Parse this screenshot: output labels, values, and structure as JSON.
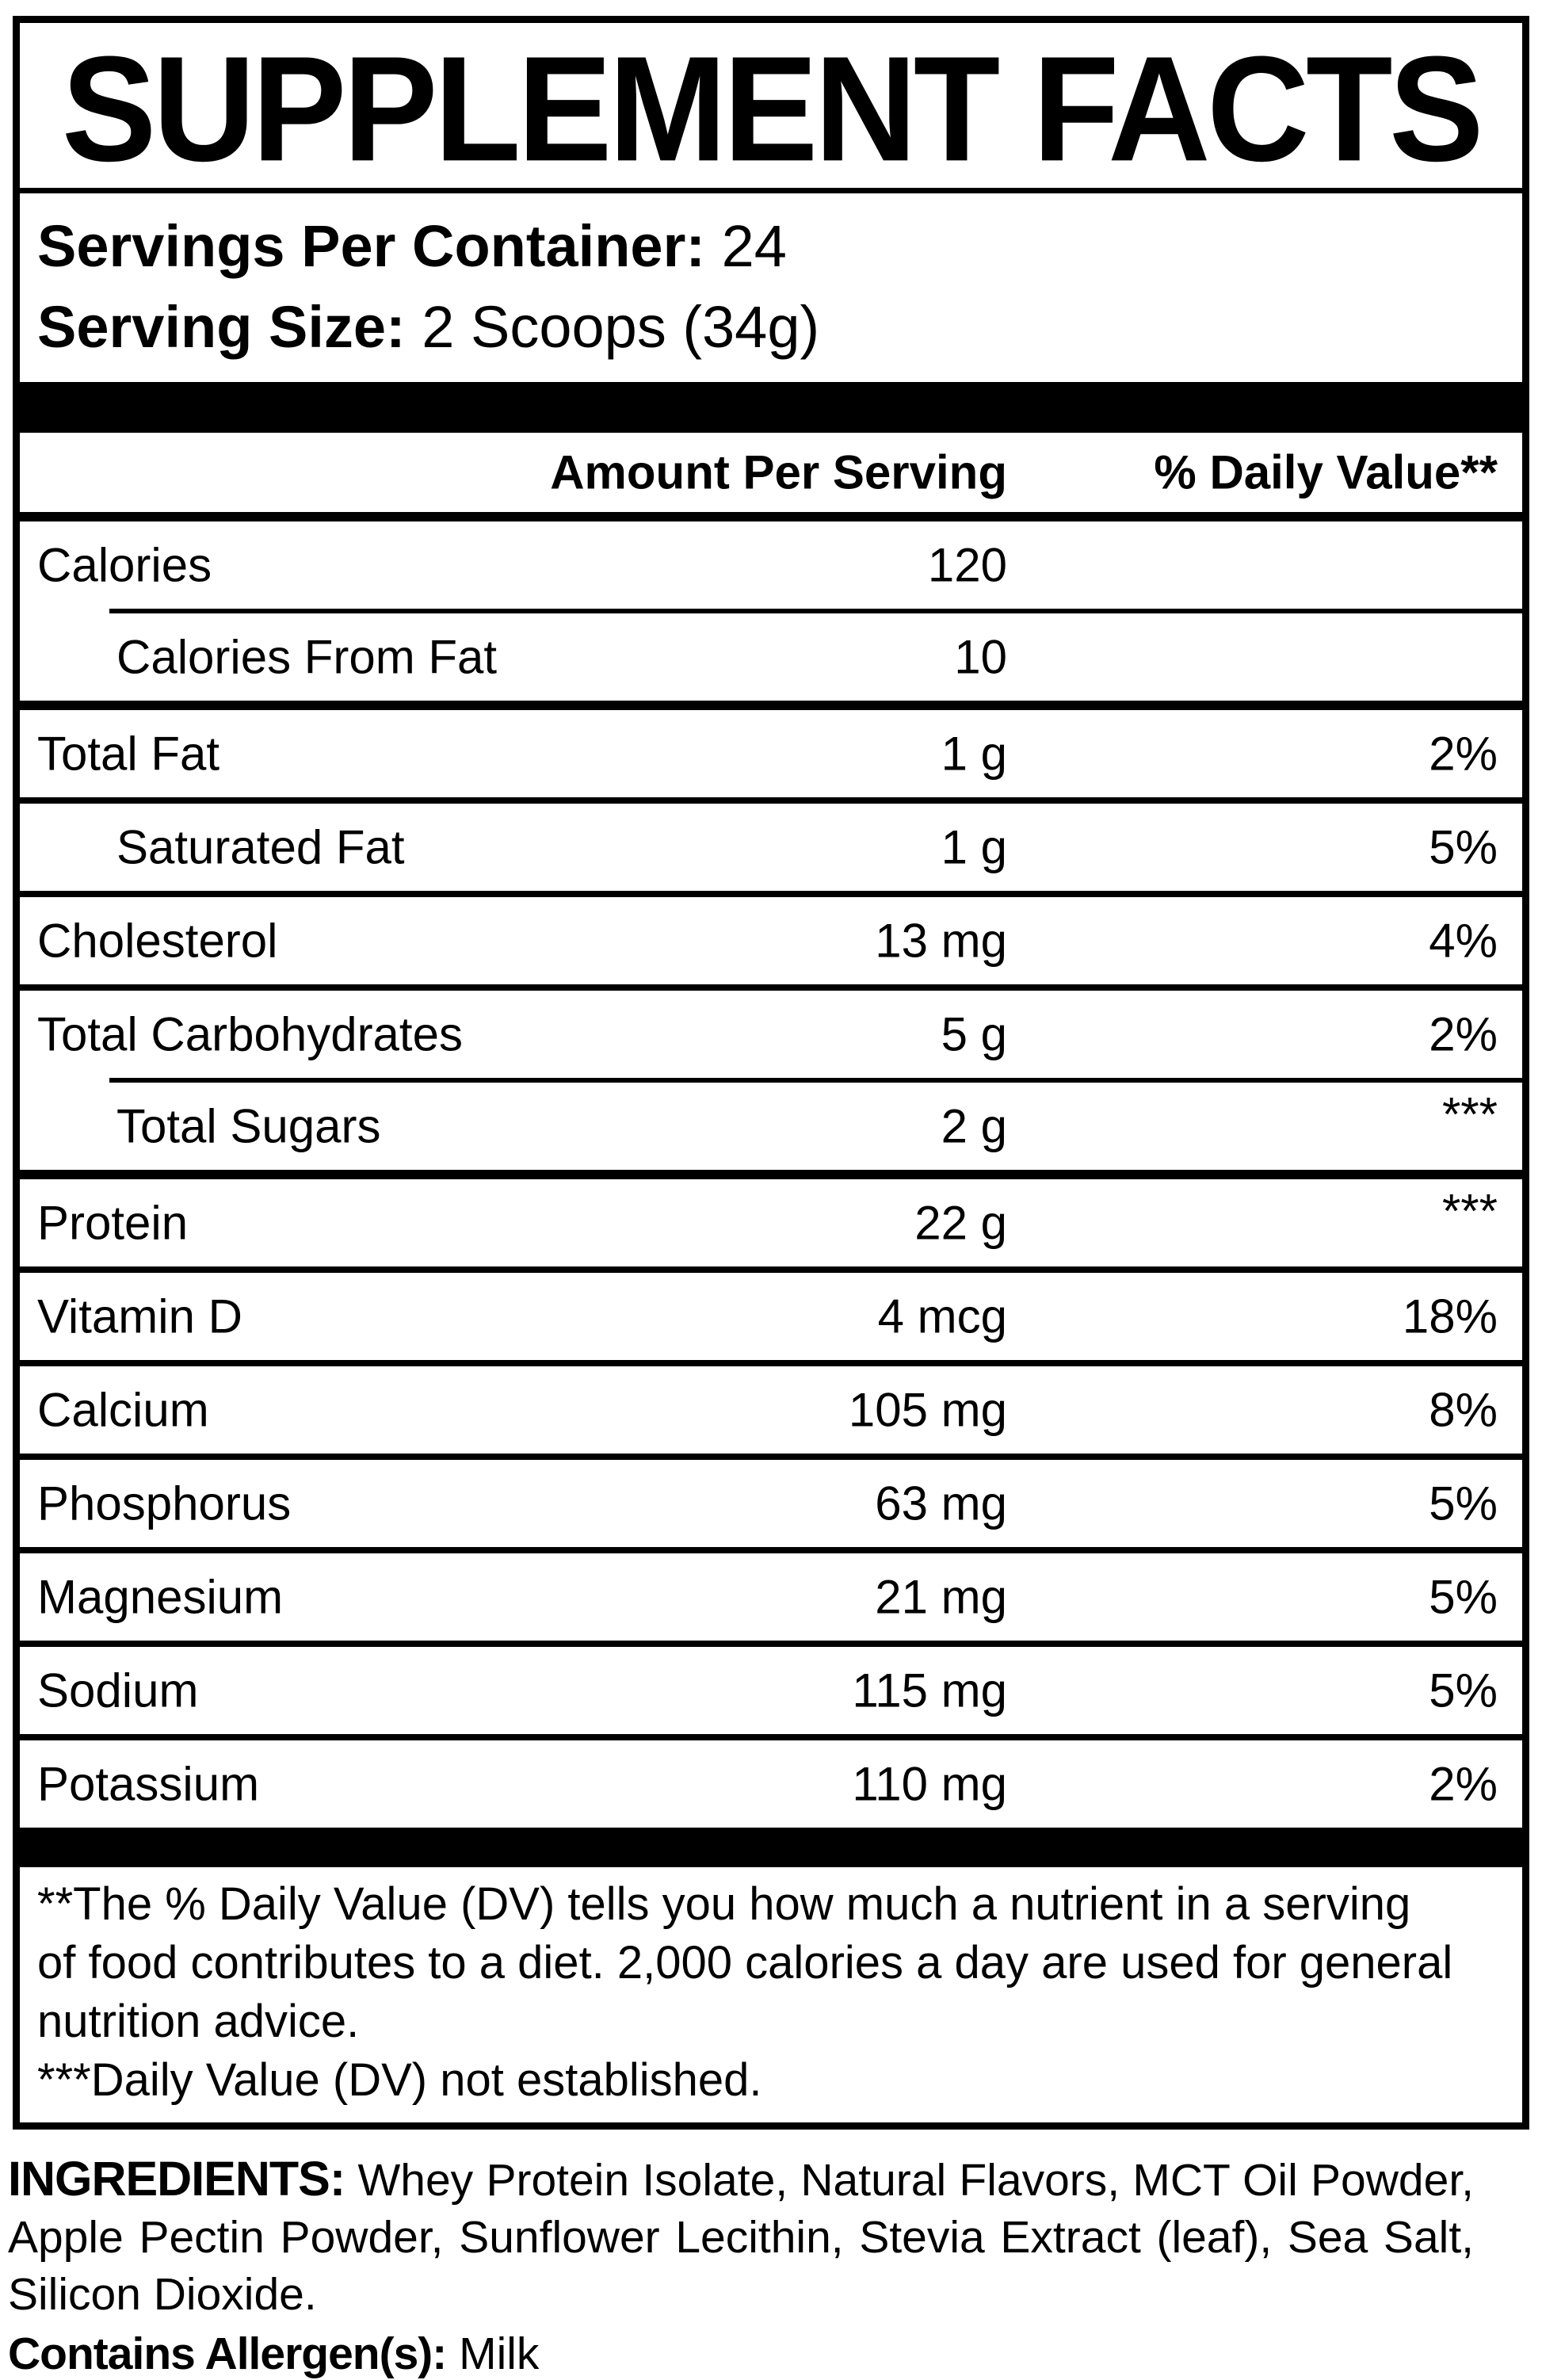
{
  "colors": {
    "text": "#000000",
    "background": "#ffffff"
  },
  "panel": {
    "title": "SUPPLEMENT FACTS",
    "servings_per_container": {
      "label": "Servings Per Container:",
      "value": "24"
    },
    "serving_size": {
      "label": "Serving Size:",
      "value": "2 Scoops (34g)"
    }
  },
  "table": {
    "amount_header": "Amount Per Serving",
    "dv_header": "% Daily Value**",
    "rows": [
      {
        "name": "Calories",
        "amount": "120",
        "dv": "",
        "indent": false,
        "rule_below": "indent"
      },
      {
        "name": "Calories From Fat",
        "amount": "10",
        "dv": "",
        "indent": true,
        "rule_below": "thick"
      },
      {
        "name": "Total Fat",
        "amount": "1 g",
        "dv": "2%",
        "indent": false,
        "rule_below": "normal"
      },
      {
        "name": "Saturated Fat",
        "amount": "1 g",
        "dv": "5%",
        "indent": true,
        "rule_below": "normal"
      },
      {
        "name": "Cholesterol",
        "amount": "13 mg",
        "dv": "4%",
        "indent": false,
        "rule_below": "normal"
      },
      {
        "name": "Total Carbohydrates",
        "amount": "5 g",
        "dv": "2%",
        "indent": false,
        "rule_below": "indent"
      },
      {
        "name": "Total Sugars",
        "amount": "2 g",
        "dv": "***",
        "indent": true,
        "rule_below": "thick"
      },
      {
        "name": "Protein",
        "amount": "22 g",
        "dv": "***",
        "indent": false,
        "rule_below": "normal"
      },
      {
        "name": "Vitamin D",
        "amount": "4 mcg",
        "dv": "18%",
        "indent": false,
        "rule_below": "normal"
      },
      {
        "name": "Calcium",
        "amount": "105 mg",
        "dv": "8%",
        "indent": false,
        "rule_below": "normal"
      },
      {
        "name": "Phosphorus",
        "amount": "63 mg",
        "dv": "5%",
        "indent": false,
        "rule_below": "normal"
      },
      {
        "name": "Magnesium",
        "amount": "21 mg",
        "dv": "5%",
        "indent": false,
        "rule_below": "normal"
      },
      {
        "name": "Sodium",
        "amount": "115 mg",
        "dv": "5%",
        "indent": false,
        "rule_below": "normal"
      },
      {
        "name": "Potassium",
        "amount": "110 mg",
        "dv": "2%",
        "indent": false,
        "rule_below": "none"
      }
    ]
  },
  "footnotes": {
    "dv_note": "**The % Daily Value (DV) tells you how much a nutrient in a serving of food contributes to a diet. 2,000 calories a day are used for general nutrition advice.",
    "not_established_note": "***Daily Value (DV) not established."
  },
  "ingredients": {
    "label": "INGREDIENTS:",
    "text": "Whey Protein Isolate, Natural Flavors, MCT Oil Powder, Apple Pectin Powder, Sunflower Lecithin, Stevia Extract (leaf), Sea Salt, Silicon Dioxide."
  },
  "allergen": {
    "label": "Contains Allergen(s):",
    "value": "Milk"
  }
}
